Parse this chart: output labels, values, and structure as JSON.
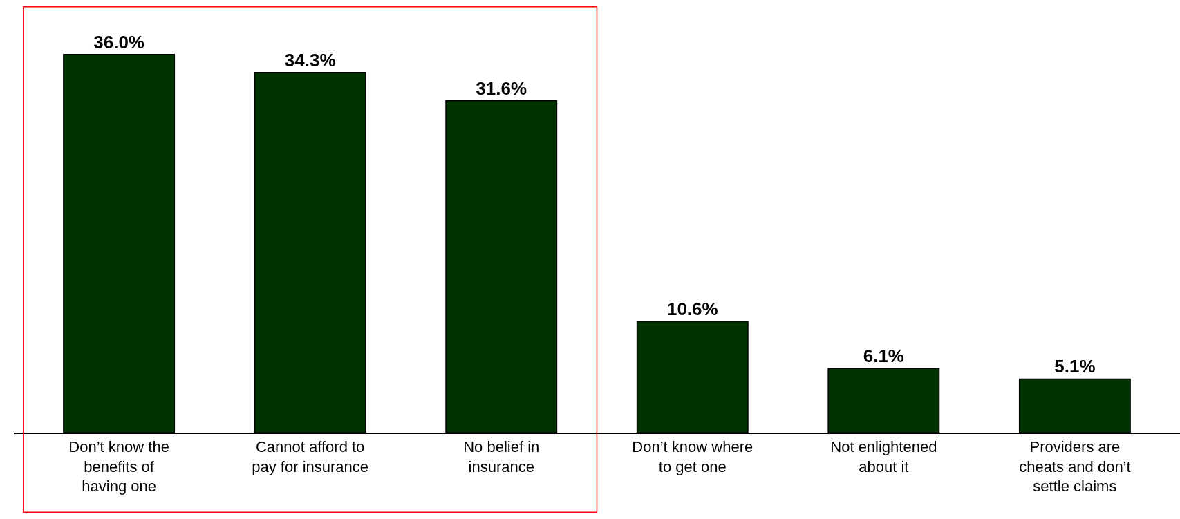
{
  "chart_data": {
    "type": "bar",
    "categories": [
      "Don’t know the benefits of having one",
      "Cannot afford to pay for insurance",
      "No belief in insurance",
      "Don’t know where to get one",
      "Not enlightened about it",
      "Providers are cheats and don’t settle claims"
    ],
    "values": [
      36.0,
      34.3,
      31.6,
      10.6,
      6.1,
      5.1
    ],
    "value_labels": [
      "36.0%",
      "34.3%",
      "31.6%",
      "10.6%",
      "6.1%",
      "5.1%"
    ],
    "color": "#003300",
    "tick_labels": "x",
    "legend": false
  }
}
